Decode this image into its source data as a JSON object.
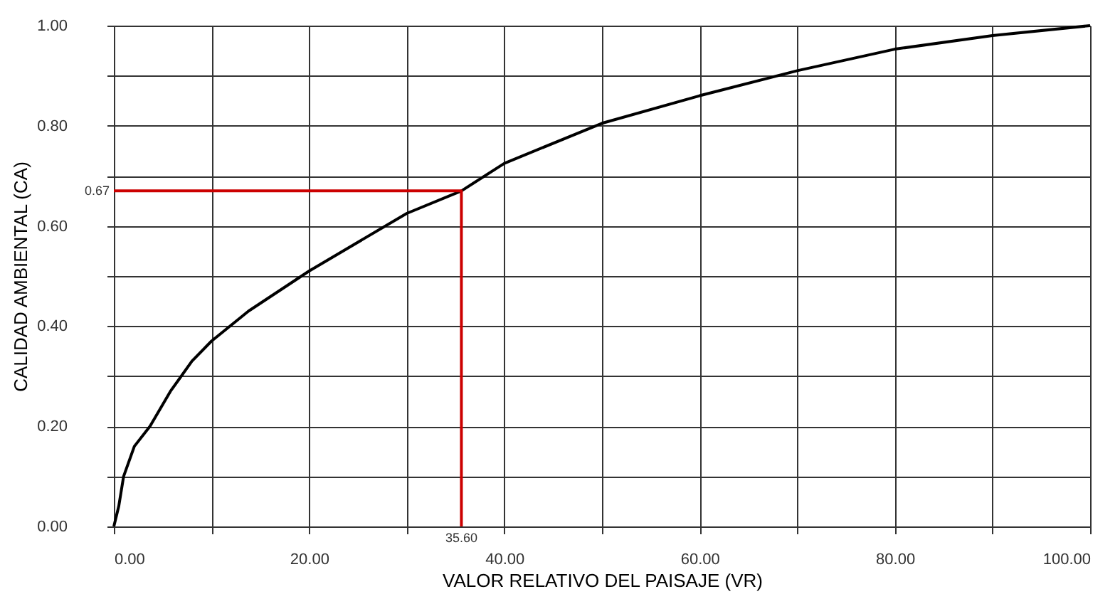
{
  "chart_data": {
    "type": "line",
    "xlabel": "VALOR RELATIVO DEL PAISAJE (VR)",
    "ylabel": "CALIDAD AMBIENTAL (CA)",
    "series": [
      {
        "color": "#000000",
        "x": [
          0,
          0.5,
          1,
          2.1,
          3.7,
          5.8,
          8,
          10,
          13.8,
          20,
          30,
          35.6,
          40,
          50,
          60,
          70,
          80,
          90,
          100
        ],
        "values": [
          0,
          0.04,
          0.1,
          0.16,
          0.2,
          0.27,
          0.33,
          0.37,
          0.43,
          0.51,
          0.625,
          0.67,
          0.725,
          0.805,
          0.86,
          0.91,
          0.953,
          0.98,
          1.0
        ]
      },
      {
        "color": "#cc0000",
        "x": [
          0,
          35.6,
          35.6
        ],
        "values": [
          0.67,
          0.67,
          0
        ]
      }
    ],
    "annotations": [
      {
        "text": "0.67",
        "x": 0,
        "y": 0.67
      },
      {
        "text": "35.60",
        "x": 35.6,
        "y": 0
      }
    ],
    "xlim": [
      0,
      100
    ],
    "ylim": [
      0,
      1
    ],
    "xticks": [
      {
        "value": 0,
        "label": "0.00"
      },
      {
        "value": 10,
        "label": null
      },
      {
        "value": 20,
        "label": "20.00"
      },
      {
        "value": 30,
        "label": null
      },
      {
        "value": 40,
        "label": "40.00"
      },
      {
        "value": 50,
        "label": null
      },
      {
        "value": 60,
        "label": "60.00"
      },
      {
        "value": 70,
        "label": null
      },
      {
        "value": 80,
        "label": "80.00"
      },
      {
        "value": 90,
        "label": null
      },
      {
        "value": 100,
        "label": "100.00"
      }
    ],
    "yticks": [
      {
        "value": 0,
        "label": "0.00"
      },
      {
        "value": 0.1,
        "label": null
      },
      {
        "value": 0.2,
        "label": "0.20"
      },
      {
        "value": 0.3,
        "label": null
      },
      {
        "value": 0.4,
        "label": "0.40"
      },
      {
        "value": 0.5,
        "label": null
      },
      {
        "value": 0.6,
        "label": "0.60"
      },
      {
        "value": 0.7,
        "label": null
      },
      {
        "value": 0.8,
        "label": "0.80"
      },
      {
        "value": 0.9,
        "label": null
      },
      {
        "value": 1,
        "label": "1.00"
      }
    ],
    "grid": true,
    "marker": "none",
    "line_style": "solid",
    "legend": false
  }
}
